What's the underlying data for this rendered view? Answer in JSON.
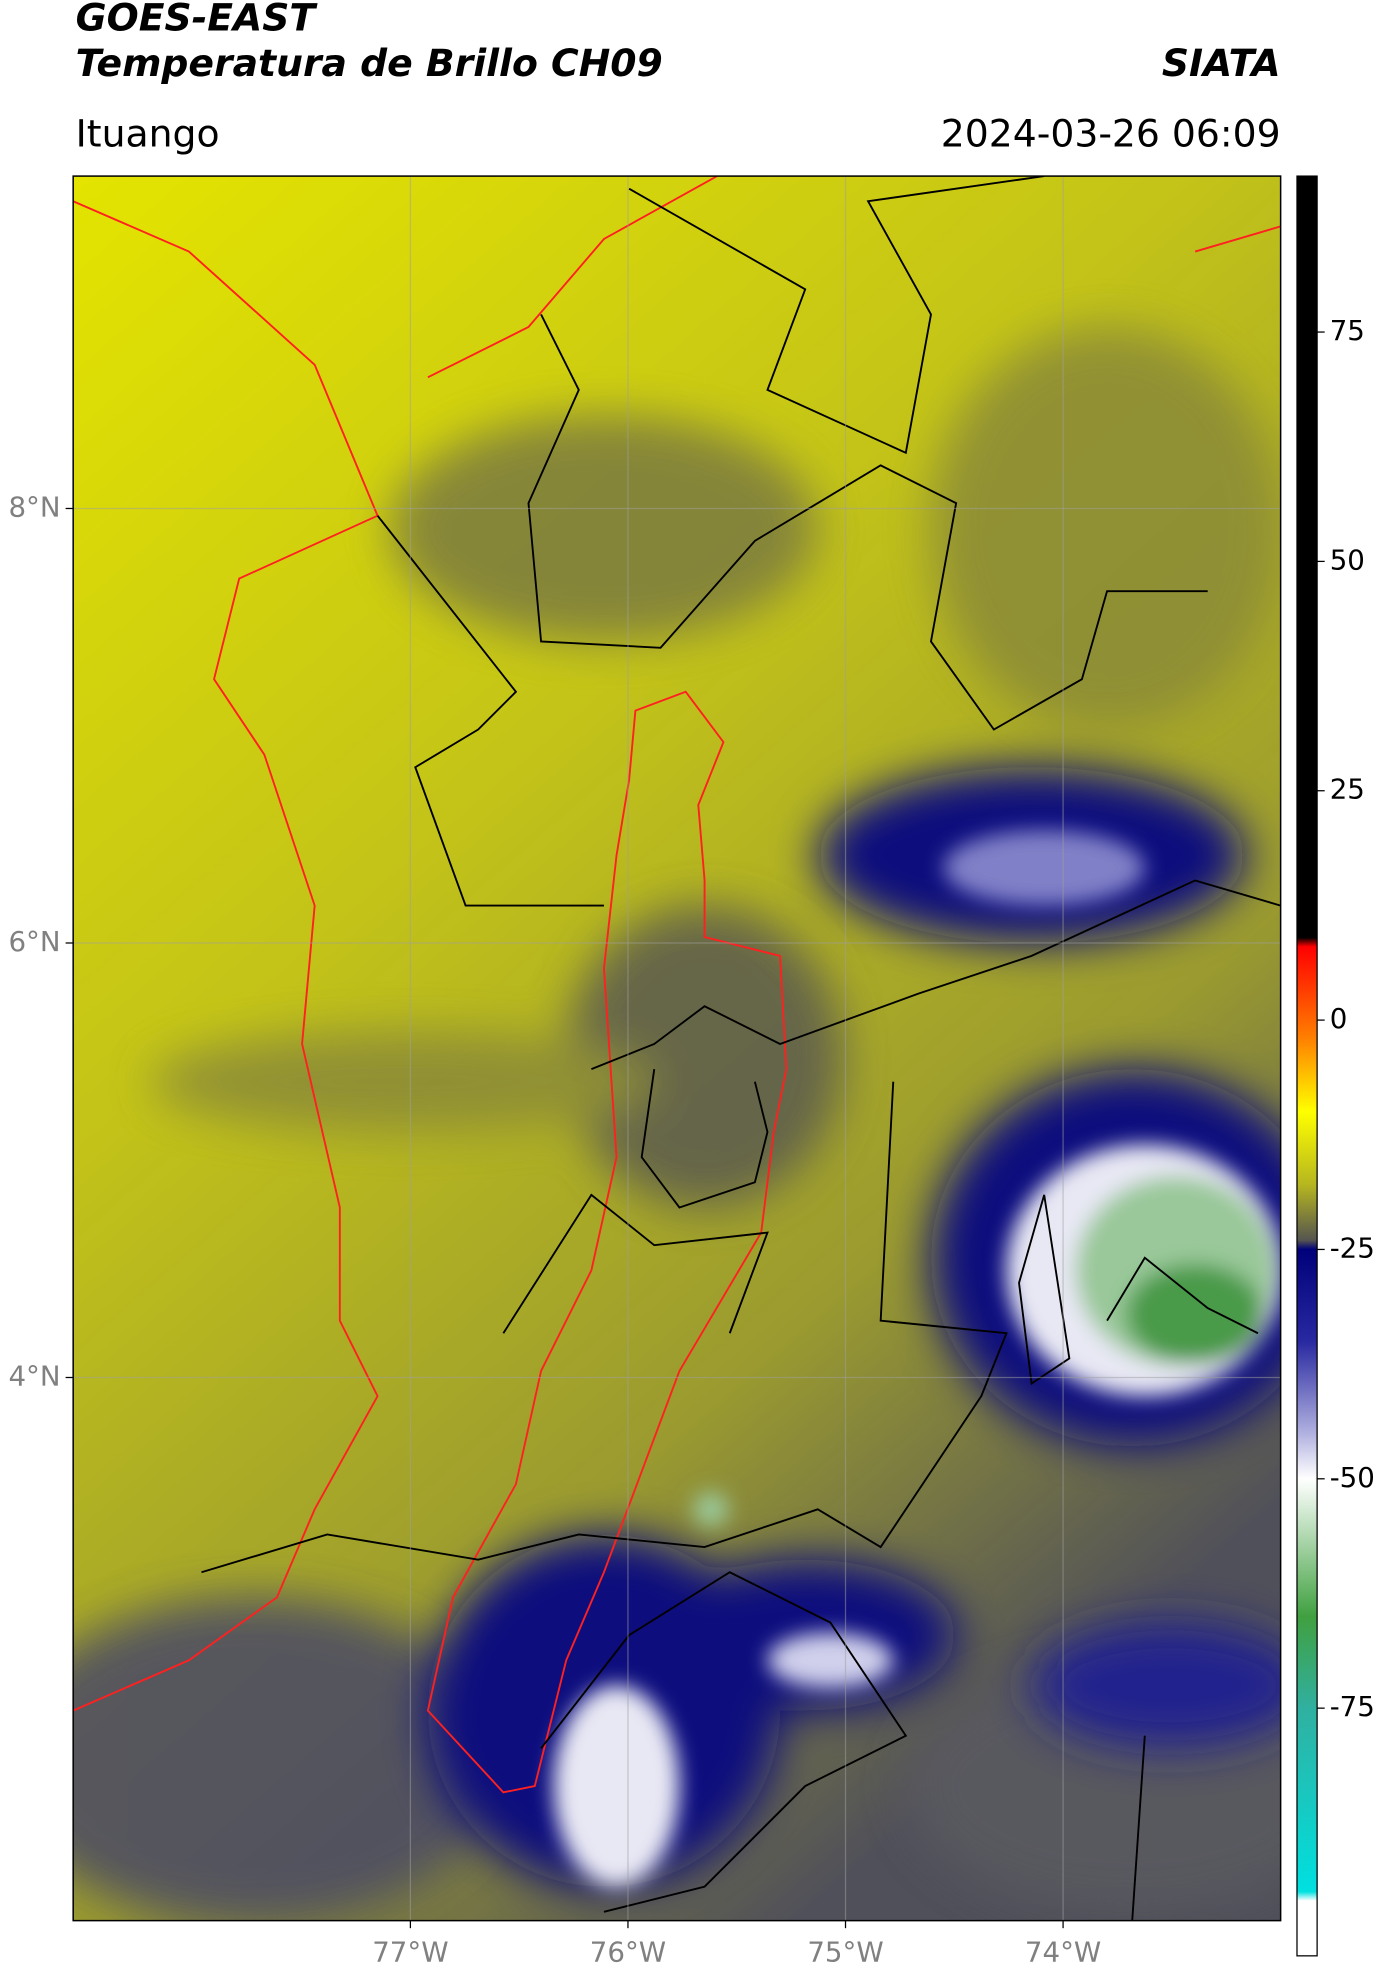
{
  "chart_data": {
    "type": "map",
    "title": "GOES-EAST",
    "subtitle": "Temperatura de Brillo CH09",
    "source": "SIATA",
    "location": "Ituango",
    "datetime": "2024-03-26 06:09",
    "xlim": [
      -78.55,
      -73.0
    ],
    "ylim": [
      1.5,
      9.53
    ],
    "xticks": [
      {
        "value": -77,
        "label": "77°W"
      },
      {
        "value": -76,
        "label": "76°W"
      },
      {
        "value": -75,
        "label": "75°W"
      },
      {
        "value": -74,
        "label": "74°W"
      }
    ],
    "yticks": [
      {
        "value": 8,
        "label": "8°N"
      },
      {
        "value": 6,
        "label": "6°N"
      },
      {
        "value": 4,
        "label": "4°N"
      }
    ],
    "grid": true,
    "clim": [
      -102,
      92
    ],
    "cticks": [
      75,
      50,
      25,
      0,
      -25,
      -50,
      -75
    ],
    "colorscale": [
      {
        "value": 92,
        "color": "#000000"
      },
      {
        "value": 9,
        "color": "#000000"
      },
      {
        "value": 8,
        "color": "#ff0000"
      },
      {
        "value": -2,
        "color": "#ff8000"
      },
      {
        "value": -10,
        "color": "#ffff00"
      },
      {
        "value": -18,
        "color": "#b5b520"
      },
      {
        "value": -24,
        "color": "#555550"
      },
      {
        "value": -25,
        "color": "#00007a"
      },
      {
        "value": -35,
        "color": "#2828a0"
      },
      {
        "value": -45,
        "color": "#b0b0e0"
      },
      {
        "value": -50,
        "color": "#ffffff"
      },
      {
        "value": -55,
        "color": "#c0e0c0"
      },
      {
        "value": -65,
        "color": "#40a040"
      },
      {
        "value": -75,
        "color": "#30b0a0"
      },
      {
        "value": -95,
        "color": "#00e0e0"
      },
      {
        "value": -96,
        "color": "#ffffff"
      },
      {
        "value": -102,
        "color": "#ffffff"
      }
    ]
  }
}
